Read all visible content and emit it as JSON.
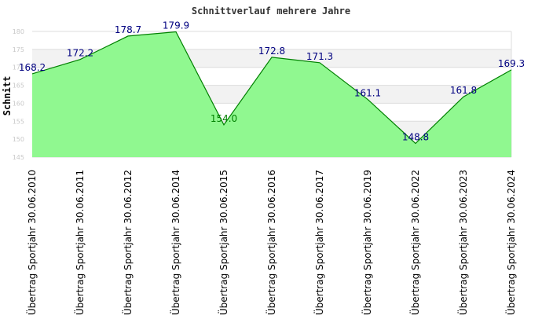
{
  "chart_data": {
    "type": "area",
    "title": "Schnittverlauf mehrere Jahre",
    "ylabel": "Schnitt",
    "xlabel": "",
    "ylim": [
      145,
      180
    ],
    "yticks": [
      "145",
      "150",
      "155",
      "160",
      "165",
      "170",
      "175",
      "180"
    ],
    "grid": true,
    "categories": [
      "Übertrag Sportjahr 30.06.2010",
      "Übertrag Sportjahr 30.06.2011",
      "Übertrag Sportjahr 30.06.2012",
      "Übertrag Sportjahr 30.06.2014",
      "Übertrag Sportjahr 30.06.2015",
      "Übertrag Sportjahr 30.06.2016",
      "Übertrag Sportjahr 30.06.2017",
      "Übertrag Sportjahr 30.06.2019",
      "Übertrag Sportjahr 30.06.2022",
      "Übertrag Sportjahr 30.06.2023",
      "Übertrag Sportjahr 30.06.2024"
    ],
    "values": [
      168.2,
      172.2,
      178.7,
      179.9,
      154.0,
      172.8,
      171.3,
      161.1,
      148.8,
      161.8,
      169.3
    ],
    "labels": [
      "168.2",
      "172.2",
      "178.7",
      "179.9",
      "154.0",
      "172.8",
      "171.3",
      "161.1",
      "148.8",
      "161.8",
      "169.3"
    ],
    "colors": {
      "fill": "#90f890",
      "line": "#008000",
      "label_normal": "#000080",
      "label_low": "#008000",
      "band": "#f2f2f2",
      "grid": "#dddddd"
    },
    "low_label_indices": [
      4
    ]
  }
}
